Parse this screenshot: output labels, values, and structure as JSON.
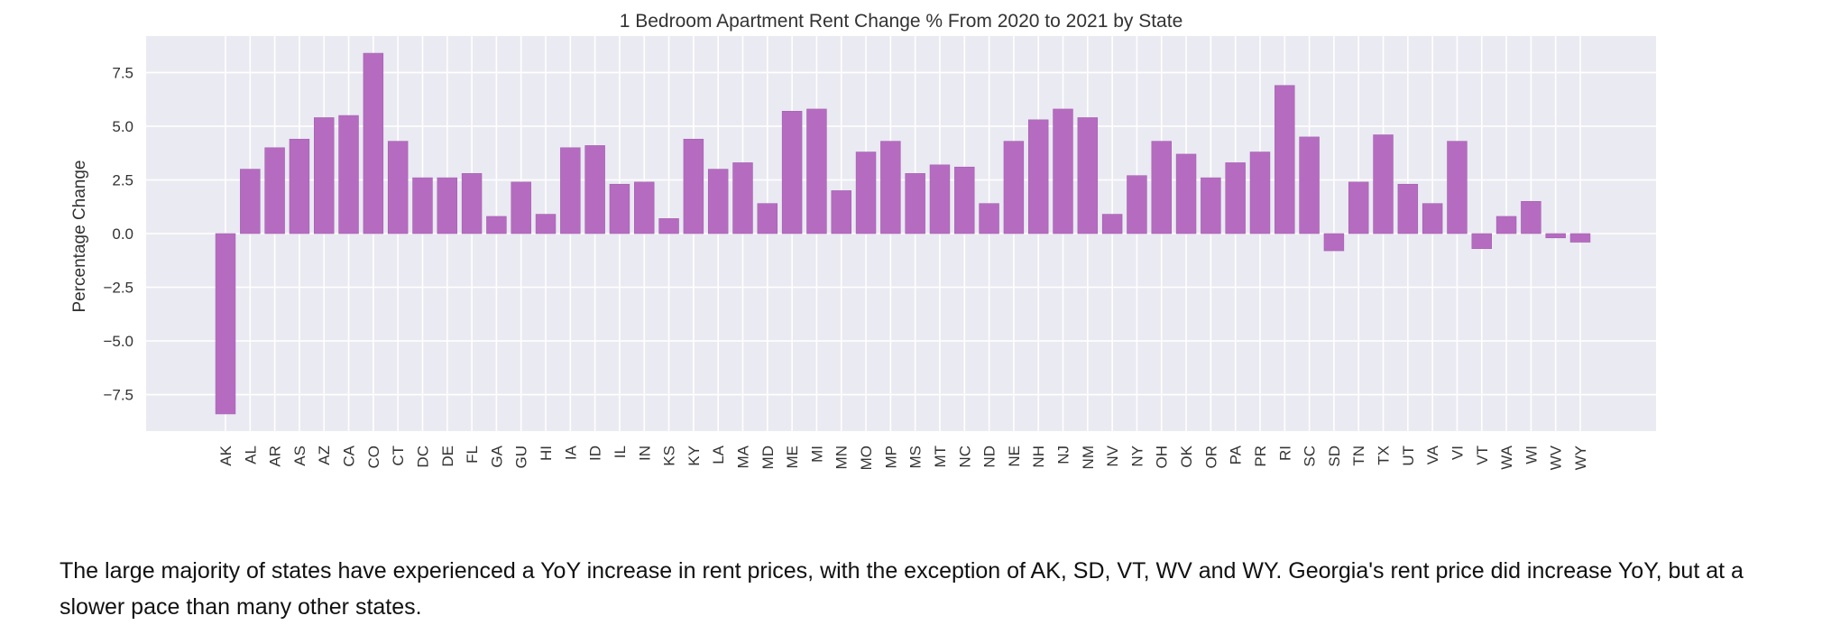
{
  "chart_data": {
    "type": "bar",
    "title": "1 Bedroom Apartment Rent Change % From 2020 to 2021 by State",
    "xlabel": "",
    "ylabel": "Percentage Change",
    "ylim": [
      -9.2,
      9.2
    ],
    "yticks": [
      -7.5,
      -5.0,
      -2.5,
      0.0,
      2.5,
      5.0,
      7.5
    ],
    "ytick_labels": [
      "−7.5",
      "−5.0",
      "−2.5",
      "0.0",
      "2.5",
      "5.0",
      "7.5"
    ],
    "grid": true,
    "legend": "none",
    "categories": [
      "AK",
      "AL",
      "AR",
      "AS",
      "AZ",
      "CA",
      "CO",
      "CT",
      "DC",
      "DE",
      "FL",
      "GA",
      "GU",
      "HI",
      "IA",
      "ID",
      "IL",
      "IN",
      "KS",
      "KY",
      "LA",
      "MA",
      "MD",
      "ME",
      "MI",
      "MN",
      "MO",
      "MP",
      "MS",
      "MT",
      "NC",
      "ND",
      "NE",
      "NH",
      "NJ",
      "NM",
      "NV",
      "NY",
      "OH",
      "OK",
      "OR",
      "PA",
      "PR",
      "RI",
      "SC",
      "SD",
      "TN",
      "TX",
      "UT",
      "VA",
      "VI",
      "VT",
      "WA",
      "WI",
      "WV",
      "WY"
    ],
    "values": [
      -8.4,
      3.0,
      4.0,
      4.4,
      5.4,
      5.5,
      8.4,
      4.3,
      2.6,
      2.6,
      2.8,
      0.8,
      2.4,
      0.9,
      4.0,
      4.1,
      2.3,
      2.4,
      0.7,
      4.4,
      3.0,
      3.3,
      1.4,
      5.7,
      5.8,
      2.0,
      3.8,
      4.3,
      2.8,
      3.2,
      3.1,
      1.4,
      4.3,
      5.3,
      5.8,
      5.4,
      0.9,
      2.7,
      4.3,
      3.7,
      2.6,
      3.3,
      3.8,
      6.9,
      4.5,
      -0.8,
      2.4,
      4.6,
      2.3,
      1.4,
      4.3,
      -0.7,
      0.8,
      1.5,
      -0.2,
      -0.4
    ],
    "colors": {
      "bar": "#b56cc0",
      "bar_stroke": "#a45fb0",
      "plot_bg": "#eaeaf2",
      "grid": "#ffffff",
      "text": "#333333"
    }
  },
  "caption": "The large majority of states have experienced a YoY increase in rent prices, with the exception of AK, SD, VT, WV and WY. Georgia's rent price did increase YoY, but at a slower pace than many other states."
}
